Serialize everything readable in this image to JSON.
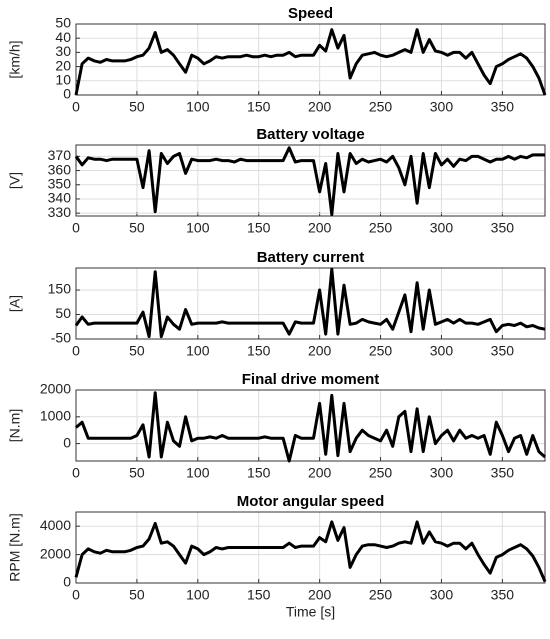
{
  "chart_data": [
    {
      "type": "line",
      "title": "Speed",
      "y_label": "[km/h]",
      "color": "#000000",
      "grid": true,
      "x": [
        0,
        5,
        10,
        15,
        20,
        25,
        30,
        35,
        40,
        45,
        50,
        55,
        60,
        65,
        70,
        75,
        80,
        85,
        90,
        95,
        100,
        105,
        110,
        115,
        120,
        125,
        130,
        135,
        140,
        145,
        150,
        155,
        160,
        165,
        170,
        175,
        180,
        185,
        190,
        195,
        200,
        205,
        210,
        215,
        220,
        225,
        230,
        235,
        240,
        245,
        250,
        255,
        260,
        265,
        270,
        275,
        280,
        285,
        290,
        295,
        300,
        305,
        310,
        315,
        320,
        325,
        330,
        335,
        340,
        345,
        350,
        355,
        360,
        365,
        370,
        375,
        380,
        385
      ],
      "values": [
        0,
        22,
        26,
        24,
        23,
        25,
        24,
        24,
        24,
        25,
        27,
        28,
        33,
        44,
        30,
        32,
        28,
        22,
        16,
        28,
        26,
        22,
        24,
        27,
        26,
        27,
        27,
        27,
        28,
        27,
        27,
        28,
        27,
        28,
        28,
        30,
        27,
        28,
        28,
        28,
        35,
        31,
        46,
        33,
        42,
        12,
        22,
        28,
        29,
        30,
        28,
        27,
        28,
        30,
        32,
        30,
        46,
        30,
        39,
        31,
        30,
        28,
        30,
        30,
        26,
        30,
        22,
        14,
        8,
        20,
        22,
        25,
        27,
        29,
        26,
        20,
        12,
        0
      ],
      "xlim": [
        0,
        385
      ],
      "xticks": [
        0,
        50,
        100,
        150,
        200,
        250,
        300,
        350
      ],
      "ylim": [
        0,
        50
      ],
      "yticks": [
        0,
        10,
        20,
        30,
        40,
        50
      ]
    },
    {
      "type": "line",
      "title": "Battery voltage",
      "y_label": "[V]",
      "color": "#000000",
      "grid": true,
      "x": [
        0,
        5,
        10,
        15,
        20,
        25,
        30,
        35,
        40,
        45,
        50,
        55,
        60,
        65,
        70,
        75,
        80,
        85,
        90,
        95,
        100,
        105,
        110,
        115,
        120,
        125,
        130,
        135,
        140,
        145,
        150,
        155,
        160,
        165,
        170,
        175,
        180,
        185,
        190,
        195,
        200,
        205,
        210,
        215,
        220,
        225,
        230,
        235,
        240,
        245,
        250,
        255,
        260,
        265,
        270,
        275,
        280,
        285,
        290,
        295,
        300,
        305,
        310,
        315,
        320,
        325,
        330,
        335,
        340,
        345,
        350,
        355,
        360,
        365,
        370,
        375,
        380,
        385
      ],
      "values": [
        370,
        364,
        369,
        368,
        368,
        367,
        368,
        368,
        368,
        368,
        368,
        348,
        374,
        331,
        372,
        365,
        370,
        372,
        358,
        368,
        367,
        367,
        367,
        368,
        367,
        367,
        366,
        368,
        367,
        367,
        367,
        367,
        367,
        367,
        367,
        376,
        366,
        367,
        367,
        367,
        345,
        365,
        329,
        372,
        345,
        372,
        365,
        368,
        366,
        367,
        368,
        366,
        370,
        362,
        350,
        370,
        337,
        372,
        348,
        372,
        364,
        368,
        363,
        368,
        367,
        370,
        370,
        368,
        366,
        368,
        368,
        370,
        368,
        370,
        369,
        371,
        371,
        371
      ],
      "xlim": [
        0,
        385
      ],
      "xticks": [
        0,
        50,
        100,
        150,
        200,
        250,
        300,
        350
      ],
      "ylim": [
        328,
        378
      ],
      "yticks": [
        330,
        340,
        350,
        360,
        370
      ]
    },
    {
      "type": "line",
      "title": "Battery current",
      "y_label": "[A]",
      "color": "#000000",
      "grid": true,
      "x": [
        0,
        5,
        10,
        15,
        20,
        25,
        30,
        35,
        40,
        45,
        50,
        55,
        60,
        65,
        70,
        75,
        80,
        85,
        90,
        95,
        100,
        105,
        110,
        115,
        120,
        125,
        130,
        135,
        140,
        145,
        150,
        155,
        160,
        165,
        170,
        175,
        180,
        185,
        190,
        195,
        200,
        205,
        210,
        215,
        220,
        225,
        230,
        235,
        240,
        245,
        250,
        255,
        260,
        265,
        270,
        275,
        280,
        285,
        290,
        295,
        300,
        305,
        310,
        315,
        320,
        325,
        330,
        335,
        340,
        345,
        350,
        355,
        360,
        365,
        370,
        375,
        380,
        385
      ],
      "values": [
        5,
        40,
        10,
        15,
        15,
        15,
        15,
        15,
        15,
        15,
        15,
        60,
        -40,
        225,
        -40,
        40,
        10,
        -10,
        70,
        10,
        15,
        15,
        15,
        15,
        20,
        15,
        15,
        15,
        15,
        15,
        15,
        15,
        15,
        15,
        15,
        -30,
        20,
        15,
        15,
        15,
        150,
        -30,
        235,
        -30,
        170,
        10,
        15,
        30,
        20,
        15,
        10,
        30,
        -10,
        60,
        130,
        -20,
        180,
        -10,
        150,
        10,
        20,
        30,
        15,
        30,
        15,
        15,
        10,
        20,
        30,
        -20,
        5,
        10,
        5,
        15,
        0,
        5,
        -5,
        -10
      ],
      "xlim": [
        0,
        385
      ],
      "xticks": [
        0,
        50,
        100,
        150,
        200,
        250,
        300,
        350
      ],
      "ylim": [
        -50,
        240
      ],
      "yticks": [
        -50,
        50,
        150
      ]
    },
    {
      "type": "line",
      "title": "Final drive moment",
      "y_label": "[N.m]",
      "color": "#000000",
      "grid": true,
      "x": [
        0,
        5,
        10,
        15,
        20,
        25,
        30,
        35,
        40,
        45,
        50,
        55,
        60,
        65,
        70,
        75,
        80,
        85,
        90,
        95,
        100,
        105,
        110,
        115,
        120,
        125,
        130,
        135,
        140,
        145,
        150,
        155,
        160,
        165,
        170,
        175,
        180,
        185,
        190,
        195,
        200,
        205,
        210,
        215,
        220,
        225,
        230,
        235,
        240,
        245,
        250,
        255,
        260,
        265,
        270,
        275,
        280,
        285,
        290,
        295,
        300,
        305,
        310,
        315,
        320,
        325,
        330,
        335,
        340,
        345,
        350,
        355,
        360,
        365,
        370,
        375,
        380,
        385
      ],
      "values": [
        600,
        800,
        200,
        200,
        200,
        200,
        200,
        200,
        200,
        200,
        300,
        700,
        -500,
        1900,
        -500,
        800,
        100,
        -100,
        1000,
        100,
        200,
        200,
        250,
        200,
        300,
        200,
        200,
        200,
        200,
        200,
        200,
        250,
        200,
        200,
        200,
        -650,
        300,
        200,
        200,
        200,
        1500,
        -400,
        1800,
        -450,
        1500,
        -300,
        200,
        500,
        300,
        200,
        100,
        500,
        -100,
        1000,
        1200,
        -300,
        1300,
        -300,
        1000,
        0,
        300,
        500,
        100,
        500,
        200,
        300,
        200,
        300,
        -400,
        800,
        300,
        -300,
        200,
        300,
        -400,
        300,
        -300,
        -500
      ],
      "xlim": [
        0,
        385
      ],
      "xticks": [
        0,
        50,
        100,
        150,
        200,
        250,
        300,
        350
      ],
      "ylim": [
        -650,
        2000
      ],
      "yticks": [
        0,
        1000,
        2000
      ]
    },
    {
      "type": "line",
      "title": "Motor angular speed",
      "y_label": "RPM [N.m]",
      "x_label": "Time [s]",
      "color": "#000000",
      "grid": true,
      "x": [
        0,
        5,
        10,
        15,
        20,
        25,
        30,
        35,
        40,
        45,
        50,
        55,
        60,
        65,
        70,
        75,
        80,
        85,
        90,
        95,
        100,
        105,
        110,
        115,
        120,
        125,
        130,
        135,
        140,
        145,
        150,
        155,
        160,
        165,
        170,
        175,
        180,
        185,
        190,
        195,
        200,
        205,
        210,
        215,
        220,
        225,
        230,
        235,
        240,
        245,
        250,
        255,
        260,
        265,
        270,
        275,
        280,
        285,
        290,
        295,
        300,
        305,
        310,
        315,
        320,
        325,
        330,
        335,
        340,
        345,
        350,
        355,
        360,
        365,
        370,
        375,
        380,
        385
      ],
      "values": [
        400,
        2000,
        2400,
        2200,
        2100,
        2300,
        2200,
        2200,
        2200,
        2300,
        2500,
        2600,
        3100,
        4200,
        2800,
        2900,
        2600,
        2000,
        1400,
        2600,
        2400,
        2000,
        2200,
        2500,
        2400,
        2500,
        2500,
        2500,
        2500,
        2500,
        2500,
        2500,
        2500,
        2500,
        2500,
        2800,
        2500,
        2600,
        2600,
        2600,
        3200,
        2900,
        4300,
        3000,
        3900,
        1100,
        2000,
        2600,
        2700,
        2700,
        2600,
        2500,
        2600,
        2800,
        2900,
        2800,
        4300,
        2800,
        3600,
        2900,
        2800,
        2600,
        2800,
        2800,
        2400,
        2800,
        2000,
        1300,
        700,
        1800,
        2000,
        2300,
        2500,
        2700,
        2400,
        1900,
        1100,
        100
      ],
      "xlim": [
        0,
        385
      ],
      "xticks": [
        0,
        50,
        100,
        150,
        200,
        250,
        300,
        350
      ],
      "ylim": [
        0,
        5000
      ],
      "yticks": [
        0,
        2000,
        4000
      ]
    }
  ]
}
